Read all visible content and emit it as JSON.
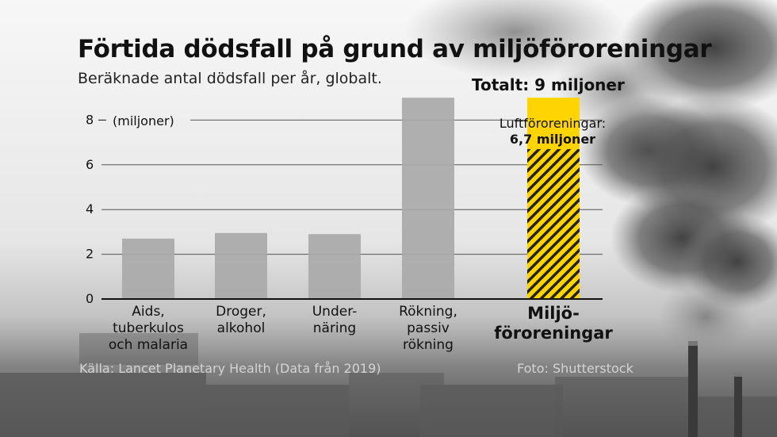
{
  "title": "Förtida dödsfall på grund av miljöföroreningar",
  "subtitle": "Beräknade antal dödsfall per år, globalt.",
  "source": "Källa: Lancet Planetary Health (Data från 2019)",
  "photo_credit": "Foto: Shutterstock",
  "colors": {
    "bar": "#a9a9a9",
    "highlight": "#ffd400",
    "hatch": "#222222",
    "text": "#111111"
  },
  "chart_data": {
    "type": "bar",
    "title": "Förtida dödsfall på grund av miljöföroreningar",
    "subtitle": "Beräknade antal dödsfall per år, globalt.",
    "unit_label": "(miljoner)",
    "categories": [
      "Aids,\ntuberkulos\noch malaria",
      "Droger,\nalkohol",
      "Under-\nnäring",
      "Rökning,\npassiv\nrökning",
      "Miljö-\nföroreningar"
    ],
    "values": [
      2.7,
      2.95,
      2.9,
      9.0,
      9.0
    ],
    "highlight_index": 4,
    "highlight_breakdown": {
      "name": "Luftföroreningar:",
      "value": 6.7,
      "value_label": "6,7 miljoner"
    },
    "total_label": "Totalt: 9 miljoner",
    "yticks": [
      0,
      2,
      4,
      6,
      8
    ],
    "ylim": [
      0,
      9
    ],
    "grid": true
  }
}
